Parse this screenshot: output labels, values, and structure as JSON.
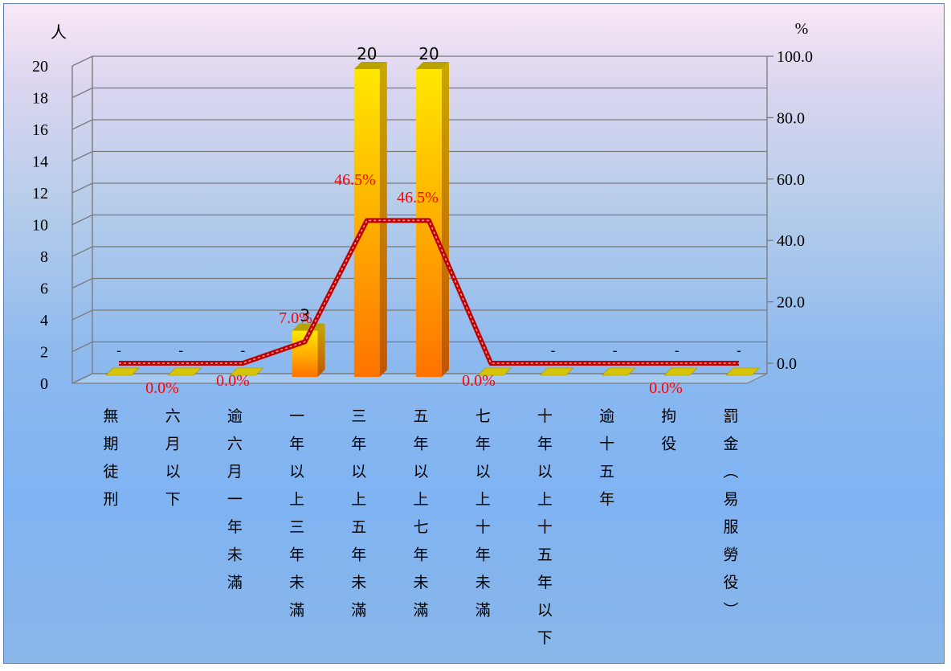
{
  "chart_data": {
    "type": "bar",
    "categories": [
      "無期徒刑",
      "六月以下",
      "逾六月一年未滿",
      "一年以上三年未滿",
      "三年以上五年未滿",
      "五年以上七年未滿",
      "七年以上十年未滿",
      "十年以上十五年以下",
      "逾十五年",
      "拘役",
      "罰金(易服勞役)"
    ],
    "series": [
      {
        "axis": "left",
        "type": "bar",
        "values": [
          0,
          0,
          0,
          3,
          20,
          20,
          0,
          0,
          0,
          0,
          0
        ],
        "data_labels": [
          "-",
          "-",
          "-",
          "3",
          "20",
          "20",
          "",
          "-",
          "-",
          "-",
          "-"
        ],
        "color": "#ff9a00"
      },
      {
        "axis": "right",
        "type": "line",
        "values": [
          0,
          0,
          0,
          7.0,
          46.5,
          46.5,
          0,
          0,
          0,
          0,
          0
        ],
        "data_labels": [
          "",
          "0.0%",
          "0.0%",
          "7.0%",
          "46.5%",
          "46.5%",
          "0.0%",
          "",
          "",
          "0.0%",
          ""
        ],
        "color": "#c00000"
      }
    ],
    "y_left": {
      "unit": "人",
      "ylim": [
        0,
        20
      ],
      "ticks": [
        "0",
        "2",
        "4",
        "6",
        "8",
        "10",
        "12",
        "14",
        "16",
        "18",
        "20"
      ]
    },
    "y_right": {
      "unit": "%",
      "ylim": [
        0,
        100
      ],
      "ticks": [
        "0.0",
        "20.0",
        "40.0",
        "60.0",
        "80.0",
        "100.0"
      ]
    },
    "grid": true,
    "style": "3d"
  }
}
